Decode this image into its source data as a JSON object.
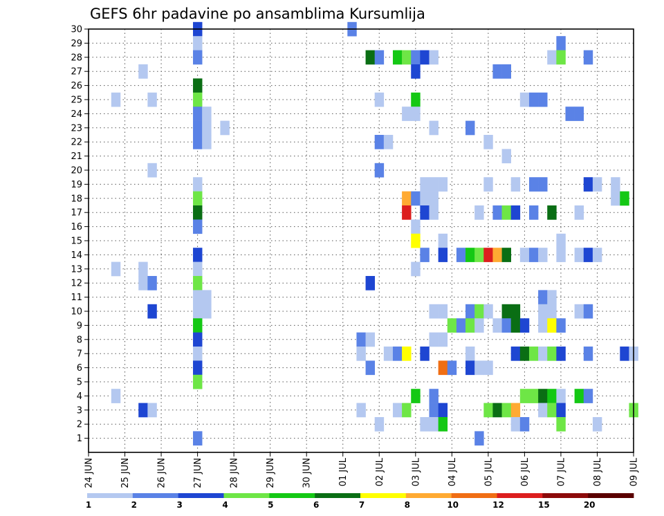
{
  "chart_data": {
    "type": "heatmap",
    "title": "GEFS 6hr padavine po ansamblima Kursumlija",
    "xlabel": "",
    "ylabel": "",
    "x_tick_labels": [
      "24 JUN",
      "25 JUN",
      "26 JUN",
      "27 JUN",
      "28 JUN",
      "29 JUN",
      "30 JUN",
      "01 JUL",
      "02 JUL",
      "03 JUL",
      "04 JUL",
      "05 JUL",
      "06 JUL",
      "07 JUL",
      "08 JUL",
      "09 JUL"
    ],
    "y_tick_labels": [
      "1",
      "2",
      "3",
      "4",
      "5",
      "6",
      "7",
      "8",
      "9",
      "10",
      "11",
      "12",
      "13",
      "14",
      "15",
      "16",
      "17",
      "18",
      "19",
      "20",
      "21",
      "22",
      "23",
      "24",
      "25",
      "26",
      "27",
      "28",
      "29",
      "30"
    ],
    "y_range": [
      0,
      30
    ],
    "time_steps_per_day": 4,
    "total_steps": 60,
    "grid": "dotted",
    "legend": {
      "position": "bottom",
      "labels": [
        "1",
        "2",
        "3",
        "4",
        "5",
        "6",
        "7",
        "8",
        "10",
        "12",
        "15",
        "20"
      ],
      "colors": [
        "#b4c8f0",
        "#5a82e6",
        "#1e46d2",
        "#6ee646",
        "#14c814",
        "#0a6e14",
        "#ffff00",
        "#ffaa32",
        "#f06e14",
        "#dc1e1e",
        "#8c0a0a",
        "#5a0000"
      ]
    },
    "cells": [
      [
        12,
        30,
        3
      ],
      [
        29,
        30,
        2
      ],
      [
        12,
        29,
        1
      ],
      [
        52,
        29,
        2
      ],
      [
        12,
        28,
        2
      ],
      [
        31,
        28,
        6
      ],
      [
        32,
        28,
        2
      ],
      [
        34,
        28,
        5
      ],
      [
        35,
        28,
        4
      ],
      [
        36,
        28,
        2
      ],
      [
        37,
        28,
        3
      ],
      [
        38,
        28,
        1
      ],
      [
        51,
        28,
        1
      ],
      [
        52,
        28,
        4
      ],
      [
        55,
        28,
        2
      ],
      [
        6,
        27,
        1
      ],
      [
        36,
        27,
        3
      ],
      [
        45,
        27,
        2
      ],
      [
        46,
        27,
        2
      ],
      [
        12,
        26,
        6
      ],
      [
        3,
        25,
        1
      ],
      [
        7,
        25,
        1
      ],
      [
        12,
        25,
        4
      ],
      [
        32,
        25,
        1
      ],
      [
        36,
        25,
        5
      ],
      [
        48,
        25,
        1
      ],
      [
        49,
        25,
        2
      ],
      [
        50,
        25,
        2
      ],
      [
        12,
        24,
        2
      ],
      [
        13,
        24,
        1
      ],
      [
        35,
        24,
        1
      ],
      [
        36,
        24,
        1
      ],
      [
        53,
        24,
        2
      ],
      [
        54,
        24,
        2
      ],
      [
        12,
        23,
        2
      ],
      [
        13,
        23,
        1
      ],
      [
        15,
        23,
        1
      ],
      [
        38,
        23,
        1
      ],
      [
        42,
        23,
        2
      ],
      [
        12,
        22,
        2
      ],
      [
        13,
        22,
        1
      ],
      [
        32,
        22,
        2
      ],
      [
        33,
        22,
        1
      ],
      [
        44,
        22,
        1
      ],
      [
        46,
        21,
        1
      ],
      [
        7,
        20,
        1
      ],
      [
        32,
        20,
        2
      ],
      [
        12,
        19,
        1
      ],
      [
        37,
        19,
        1
      ],
      [
        38,
        19,
        1
      ],
      [
        39,
        19,
        1
      ],
      [
        44,
        19,
        1
      ],
      [
        47,
        19,
        1
      ],
      [
        49,
        19,
        2
      ],
      [
        50,
        19,
        2
      ],
      [
        55,
        19,
        3
      ],
      [
        56,
        19,
        1
      ],
      [
        58,
        19,
        1
      ],
      [
        12,
        18,
        4
      ],
      [
        35,
        18,
        8
      ],
      [
        36,
        18,
        2
      ],
      [
        37,
        18,
        1
      ],
      [
        38,
        18,
        1
      ],
      [
        58,
        18,
        1
      ],
      [
        59,
        18,
        5
      ],
      [
        12,
        17,
        6
      ],
      [
        35,
        17,
        10
      ],
      [
        37,
        17,
        3
      ],
      [
        38,
        17,
        1
      ],
      [
        43,
        17,
        1
      ],
      [
        45,
        17,
        2
      ],
      [
        46,
        17,
        4
      ],
      [
        47,
        17,
        3
      ],
      [
        49,
        17,
        2
      ],
      [
        51,
        17,
        6
      ],
      [
        54,
        17,
        1
      ],
      [
        12,
        16,
        2
      ],
      [
        36,
        16,
        1
      ],
      [
        36,
        15,
        7
      ],
      [
        39,
        15,
        1
      ],
      [
        52,
        15,
        1
      ],
      [
        12,
        14,
        3
      ],
      [
        37,
        14,
        2
      ],
      [
        39,
        14,
        3
      ],
      [
        41,
        14,
        2
      ],
      [
        42,
        14,
        5
      ],
      [
        43,
        14,
        4
      ],
      [
        44,
        14,
        10
      ],
      [
        45,
        14,
        8
      ],
      [
        46,
        14,
        6
      ],
      [
        48,
        14,
        1
      ],
      [
        49,
        14,
        2
      ],
      [
        50,
        14,
        1
      ],
      [
        52,
        14,
        1
      ],
      [
        54,
        14,
        1
      ],
      [
        55,
        14,
        3
      ],
      [
        56,
        14,
        1
      ],
      [
        3,
        13,
        1
      ],
      [
        6,
        13,
        1
      ],
      [
        12,
        13,
        1
      ],
      [
        36,
        13,
        1
      ],
      [
        6,
        12,
        1
      ],
      [
        7,
        12,
        2
      ],
      [
        12,
        12,
        4
      ],
      [
        31,
        12,
        3
      ],
      [
        12,
        11,
        1
      ],
      [
        13,
        11,
        1
      ],
      [
        50,
        11,
        2
      ],
      [
        51,
        11,
        1
      ],
      [
        7,
        10,
        3
      ],
      [
        12,
        10,
        1
      ],
      [
        13,
        10,
        1
      ],
      [
        38,
        10,
        1
      ],
      [
        39,
        10,
        1
      ],
      [
        42,
        10,
        2
      ],
      [
        43,
        10,
        4
      ],
      [
        44,
        10,
        1
      ],
      [
        46,
        10,
        6
      ],
      [
        47,
        10,
        6
      ],
      [
        50,
        10,
        1
      ],
      [
        51,
        10,
        1
      ],
      [
        54,
        10,
        1
      ],
      [
        55,
        10,
        2
      ],
      [
        12,
        9,
        5
      ],
      [
        40,
        9,
        4
      ],
      [
        41,
        9,
        2
      ],
      [
        42,
        9,
        4
      ],
      [
        43,
        9,
        1
      ],
      [
        45,
        9,
        1
      ],
      [
        46,
        9,
        2
      ],
      [
        47,
        9,
        6
      ],
      [
        48,
        9,
        3
      ],
      [
        50,
        9,
        1
      ],
      [
        51,
        9,
        7
      ],
      [
        52,
        9,
        2
      ],
      [
        12,
        8,
        3
      ],
      [
        30,
        8,
        2
      ],
      [
        31,
        8,
        1
      ],
      [
        38,
        8,
        1
      ],
      [
        39,
        8,
        1
      ],
      [
        12,
        7,
        1
      ],
      [
        30,
        7,
        1
      ],
      [
        33,
        7,
        1
      ],
      [
        34,
        7,
        2
      ],
      [
        35,
        7,
        7
      ],
      [
        37,
        7,
        3
      ],
      [
        42,
        7,
        1
      ],
      [
        47,
        7,
        3
      ],
      [
        48,
        7,
        6
      ],
      [
        49,
        7,
        4
      ],
      [
        50,
        7,
        1
      ],
      [
        51,
        7,
        4
      ],
      [
        52,
        7,
        3
      ],
      [
        55,
        7,
        2
      ],
      [
        59,
        7,
        3
      ],
      [
        60,
        7,
        1
      ],
      [
        12,
        6,
        3
      ],
      [
        31,
        6,
        2
      ],
      [
        39,
        6,
        9
      ],
      [
        40,
        6,
        2
      ],
      [
        42,
        6,
        3
      ],
      [
        43,
        6,
        1
      ],
      [
        44,
        6,
        1
      ],
      [
        12,
        5,
        4
      ],
      [
        3,
        4,
        1
      ],
      [
        36,
        4,
        5
      ],
      [
        38,
        4,
        2
      ],
      [
        48,
        4,
        4
      ],
      [
        49,
        4,
        4
      ],
      [
        50,
        4,
        6
      ],
      [
        51,
        4,
        5
      ],
      [
        52,
        4,
        1
      ],
      [
        54,
        4,
        5
      ],
      [
        55,
        4,
        2
      ],
      [
        6,
        3,
        3
      ],
      [
        7,
        3,
        1
      ],
      [
        30,
        3,
        1
      ],
      [
        34,
        3,
        1
      ],
      [
        35,
        3,
        4
      ],
      [
        38,
        3,
        2
      ],
      [
        39,
        3,
        3
      ],
      [
        44,
        3,
        4
      ],
      [
        45,
        3,
        6
      ],
      [
        46,
        3,
        4
      ],
      [
        47,
        3,
        8
      ],
      [
        50,
        3,
        1
      ],
      [
        51,
        3,
        4
      ],
      [
        52,
        3,
        3
      ],
      [
        60,
        3,
        4
      ],
      [
        32,
        2,
        1
      ],
      [
        37,
        2,
        1
      ],
      [
        38,
        2,
        1
      ],
      [
        39,
        2,
        5
      ],
      [
        47,
        2,
        1
      ],
      [
        48,
        2,
        2
      ],
      [
        52,
        2,
        4
      ],
      [
        56,
        2,
        1
      ],
      [
        12,
        1,
        2
      ],
      [
        43,
        1,
        2
      ]
    ]
  }
}
